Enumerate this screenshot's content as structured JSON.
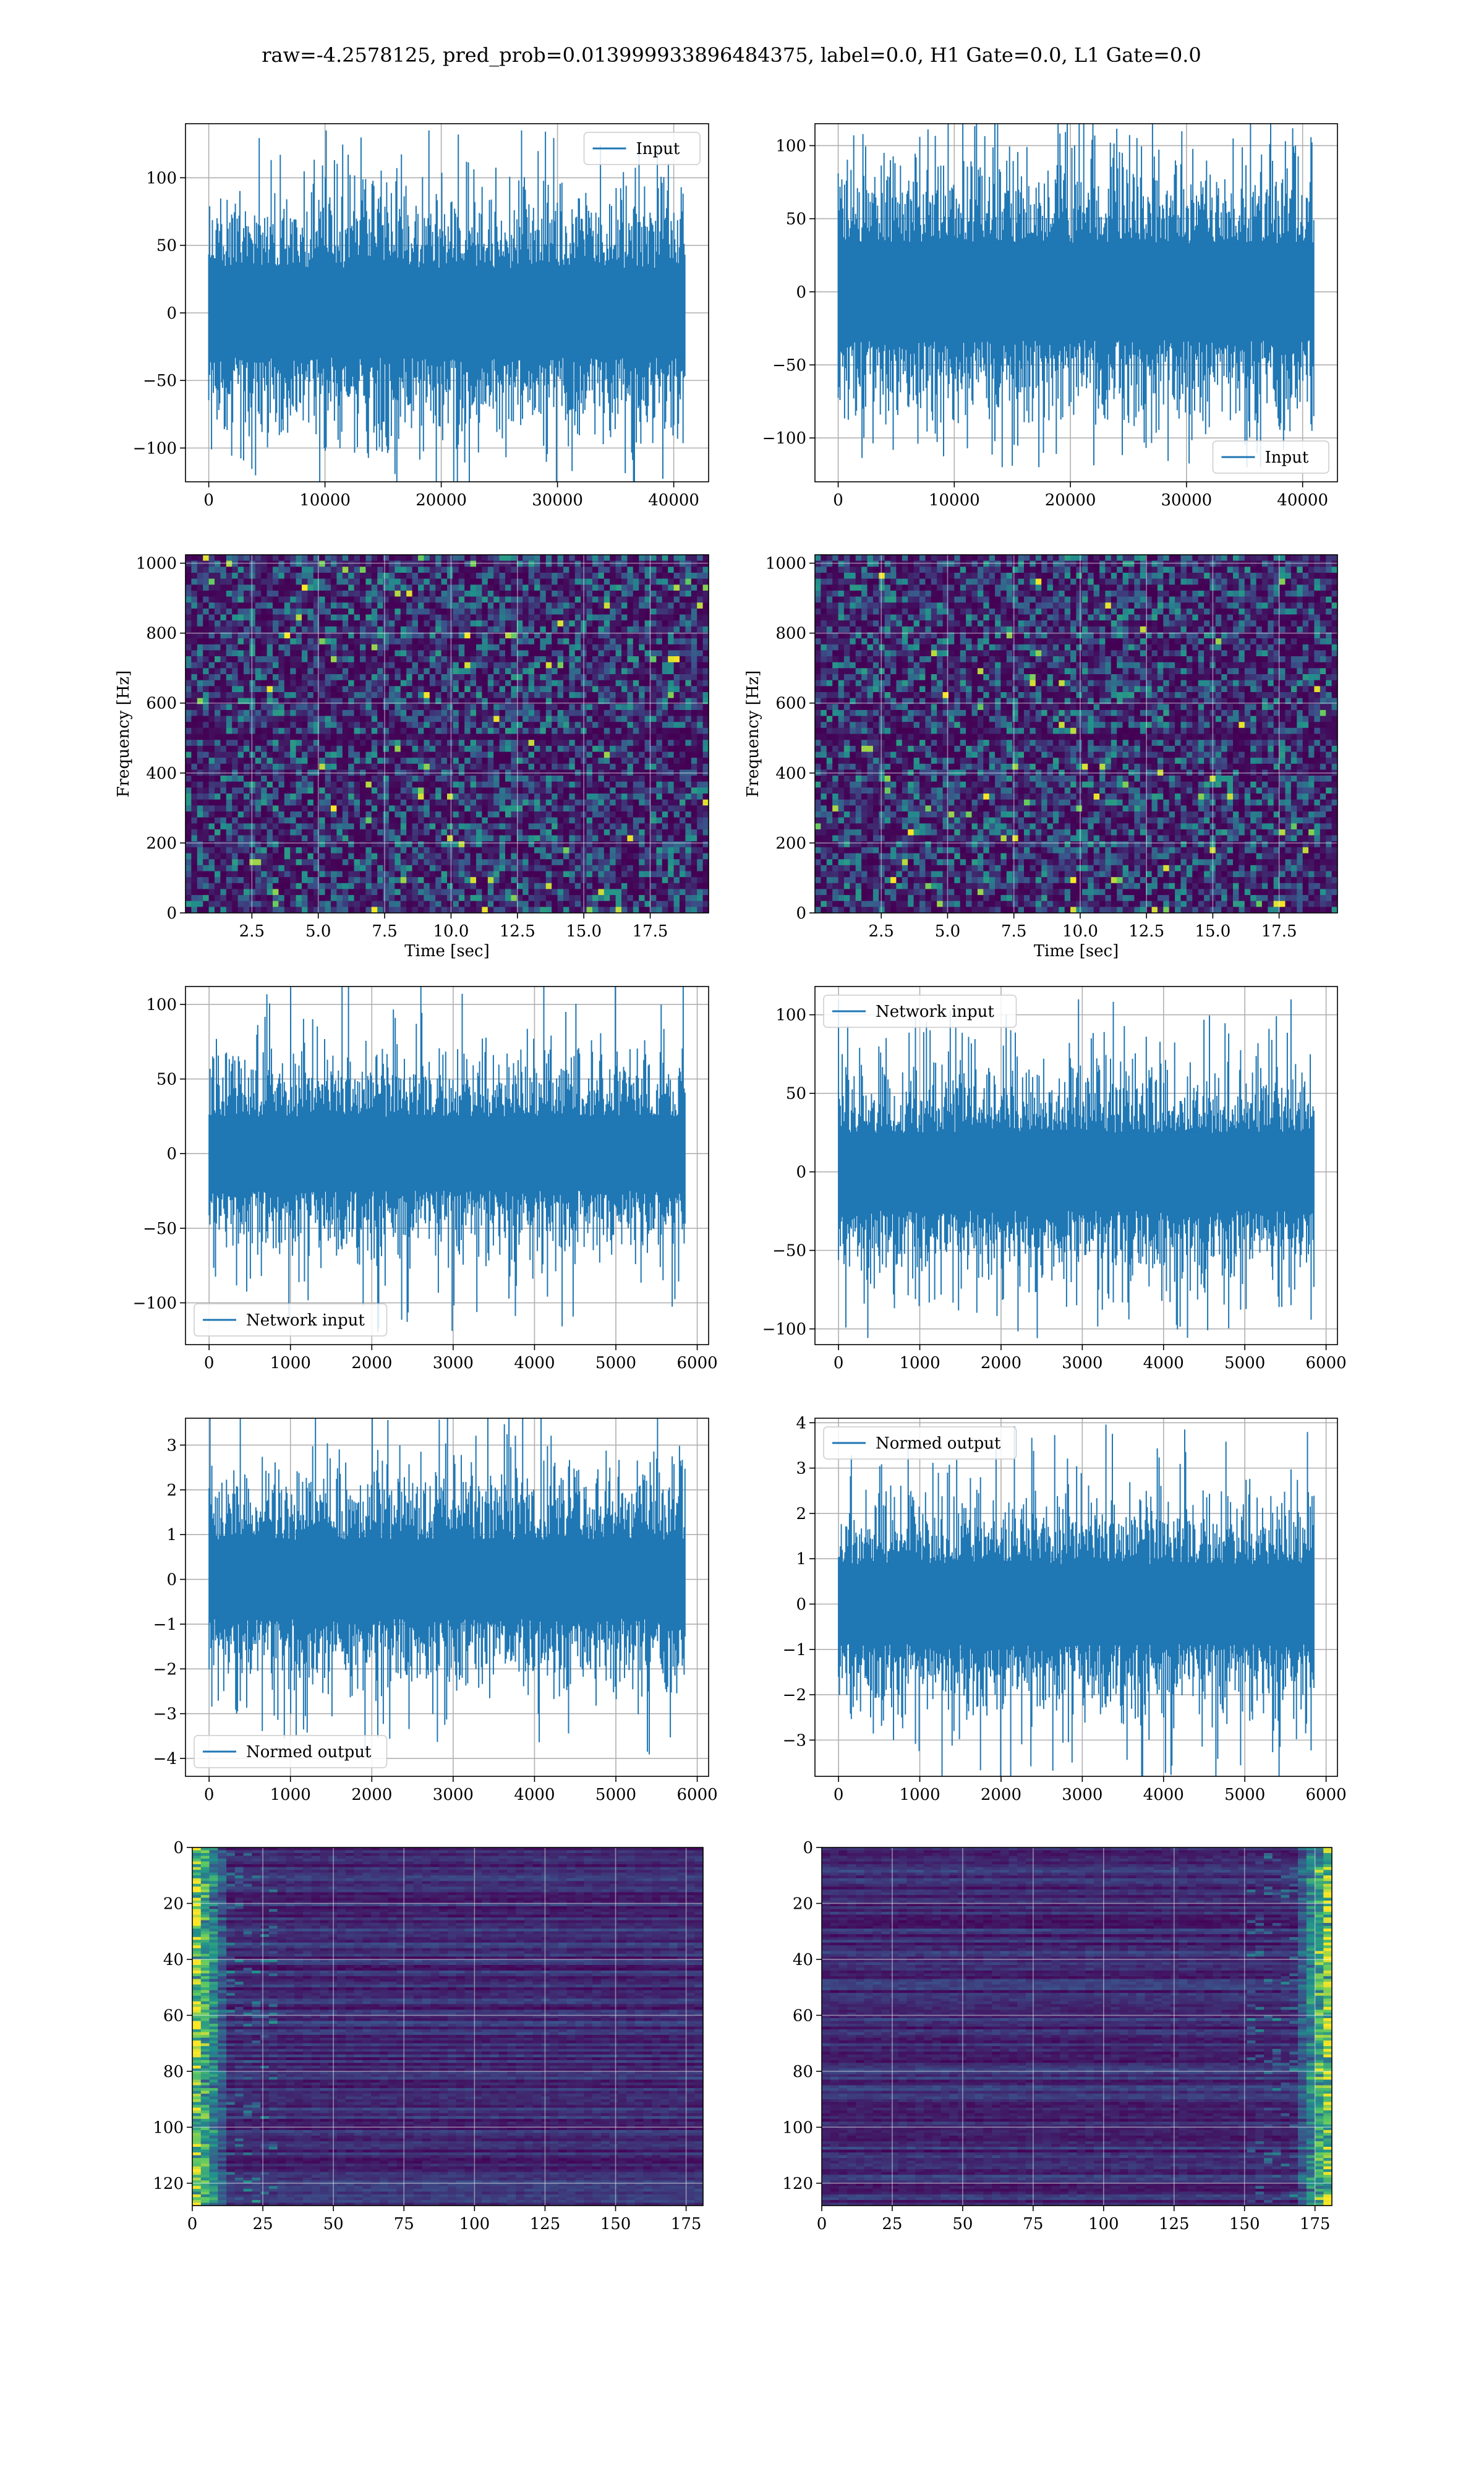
{
  "suptitle": "raw=-4.2578125, pred_prob=0.013999933896484375, label=0.0, H1 Gate=0.0, L1 Gate=0.0",
  "colors": {
    "line": "#1f77b4",
    "grid": "#b0b0b0",
    "viridis_low": "#440154",
    "viridis_mid": "#21918c",
    "viridis_high": "#fde725"
  },
  "chart_data": [
    {
      "id": "input-h1",
      "type": "line",
      "series": [
        {
          "name": "Input",
          "amplitude": 60,
          "spike_max": 135
        }
      ],
      "xlim": [
        -2000,
        43000
      ],
      "ylim": [
        -125,
        140
      ],
      "x_length": 40960,
      "xticks": [
        "0",
        "10000",
        "20000",
        "30000",
        "40000"
      ],
      "xtick_values": [
        0,
        10000,
        20000,
        30000,
        40000
      ],
      "yticks": [
        "100",
        "50",
        "0",
        "−50",
        "−100"
      ],
      "ytick_values": [
        100,
        50,
        0,
        -50,
        -100
      ],
      "legend": "upper right",
      "grid": true
    },
    {
      "id": "input-l1",
      "type": "line",
      "series": [
        {
          "name": "Input",
          "amplitude": 60,
          "spike_max": 120
        }
      ],
      "xlim": [
        -2000,
        43000
      ],
      "ylim": [
        -130,
        115
      ],
      "x_length": 40960,
      "xticks": [
        "0",
        "10000",
        "20000",
        "30000",
        "40000"
      ],
      "xtick_values": [
        0,
        10000,
        20000,
        30000,
        40000
      ],
      "yticks": [
        "100",
        "50",
        "0",
        "−50",
        "−100"
      ],
      "ytick_values": [
        100,
        50,
        0,
        -50,
        -100
      ],
      "legend": "lower right",
      "grid": true
    },
    {
      "id": "spec-h1",
      "type": "heatmap",
      "colormap": "viridis",
      "xlim": [
        0,
        19.7
      ],
      "ylim": [
        0,
        1024
      ],
      "xticks": [
        "2.5",
        "5.0",
        "7.5",
        "10.0",
        "12.5",
        "15.0",
        "17.5"
      ],
      "xtick_values": [
        2.5,
        5,
        7.5,
        10,
        12.5,
        15,
        17.5
      ],
      "yticks": [
        "1000",
        "800",
        "600",
        "400",
        "200",
        "0"
      ],
      "ytick_values": [
        1000,
        800,
        600,
        400,
        200,
        0
      ],
      "xlabel": "Time [sec]",
      "ylabel": "Frequency [Hz]",
      "dark_band_hz": [
        490,
        520
      ],
      "grid": true
    },
    {
      "id": "spec-l1",
      "type": "heatmap",
      "colormap": "viridis",
      "xlim": [
        0,
        19.7
      ],
      "ylim": [
        0,
        1024
      ],
      "xticks": [
        "2.5",
        "5.0",
        "7.5",
        "10.0",
        "12.5",
        "15.0",
        "17.5"
      ],
      "xtick_values": [
        2.5,
        5,
        7.5,
        10,
        12.5,
        15,
        17.5
      ],
      "yticks": [
        "1000",
        "800",
        "600",
        "400",
        "200",
        "0"
      ],
      "ytick_values": [
        1000,
        800,
        600,
        400,
        200,
        0
      ],
      "xlabel": "Time [sec]",
      "ylabel": "Frequency [Hz]",
      "dark_band_hz": [
        495,
        510
      ],
      "grid": true
    },
    {
      "id": "network-h1",
      "type": "line",
      "series": [
        {
          "name": "Network input",
          "amplitude": 45,
          "spike_max": 120
        }
      ],
      "xlim": [
        -290,
        6140
      ],
      "ylim": [
        -128,
        112
      ],
      "x_length": 5850,
      "xticks": [
        "0",
        "1000",
        "2000",
        "3000",
        "4000",
        "5000",
        "6000"
      ],
      "xtick_values": [
        0,
        1000,
        2000,
        3000,
        4000,
        5000,
        6000
      ],
      "yticks": [
        "100",
        "50",
        "0",
        "−50",
        "−100"
      ],
      "ytick_values": [
        100,
        50,
        0,
        -50,
        -100
      ],
      "legend": "lower left",
      "grid": true
    },
    {
      "id": "network-l1",
      "type": "line",
      "series": [
        {
          "name": "Network input",
          "amplitude": 45,
          "spike_max": 110
        }
      ],
      "xlim": [
        -290,
        6140
      ],
      "ylim": [
        -110,
        118
      ],
      "x_length": 5850,
      "xticks": [
        "0",
        "1000",
        "2000",
        "3000",
        "4000",
        "5000",
        "6000"
      ],
      "xtick_values": [
        0,
        1000,
        2000,
        3000,
        4000,
        5000,
        6000
      ],
      "yticks": [
        "100",
        "50",
        "0",
        "−50",
        "−100"
      ],
      "ytick_values": [
        100,
        50,
        0,
        -50,
        -100
      ],
      "legend": "upper left",
      "grid": true
    },
    {
      "id": "normed-h1",
      "type": "line",
      "series": [
        {
          "name": "Normed output",
          "amplitude": 1.6,
          "spike_max": 4.0
        }
      ],
      "xlim": [
        -290,
        6140
      ],
      "ylim": [
        -4.4,
        3.6
      ],
      "x_length": 5850,
      "xticks": [
        "0",
        "1000",
        "2000",
        "3000",
        "4000",
        "5000",
        "6000"
      ],
      "xtick_values": [
        0,
        1000,
        2000,
        3000,
        4000,
        5000,
        6000
      ],
      "yticks": [
        "3",
        "2",
        "1",
        "0",
        "−1",
        "−2",
        "−3",
        "−4"
      ],
      "ytick_values": [
        3,
        2,
        1,
        0,
        -1,
        -2,
        -3,
        -4
      ],
      "legend": "lower left",
      "grid": true
    },
    {
      "id": "normed-l1",
      "type": "line",
      "series": [
        {
          "name": "Normed output",
          "amplitude": 1.6,
          "spike_max": 4.0
        }
      ],
      "xlim": [
        -290,
        6140
      ],
      "ylim": [
        -3.8,
        4.1
      ],
      "x_length": 5850,
      "xticks": [
        "0",
        "1000",
        "2000",
        "3000",
        "4000",
        "5000",
        "6000"
      ],
      "xtick_values": [
        0,
        1000,
        2000,
        3000,
        4000,
        5000,
        6000
      ],
      "yticks": [
        "4",
        "3",
        "2",
        "1",
        "0",
        "−1",
        "−2",
        "−3"
      ],
      "ytick_values": [
        4,
        3,
        2,
        1,
        0,
        -1,
        -2,
        -3
      ],
      "legend": "upper left",
      "grid": true
    },
    {
      "id": "features-h1",
      "type": "heatmap",
      "colormap": "viridis",
      "xlim": [
        0,
        181
      ],
      "ylim": [
        128,
        0
      ],
      "xticks": [
        "0",
        "25",
        "50",
        "75",
        "100",
        "125",
        "150",
        "175"
      ],
      "xtick_values": [
        0,
        25,
        50,
        75,
        100,
        125,
        150,
        175
      ],
      "yticks": [
        "0",
        "20",
        "40",
        "60",
        "80",
        "100",
        "120"
      ],
      "ytick_values": [
        0,
        20,
        40,
        60,
        80,
        100,
        120
      ],
      "bright_side": "left",
      "grid": true
    },
    {
      "id": "features-l1",
      "type": "heatmap",
      "colormap": "viridis",
      "xlim": [
        0,
        181
      ],
      "ylim": [
        128,
        0
      ],
      "xticks": [
        "0",
        "25",
        "50",
        "75",
        "100",
        "125",
        "150",
        "175"
      ],
      "xtick_values": [
        0,
        25,
        50,
        75,
        100,
        125,
        150,
        175
      ],
      "yticks": [
        "0",
        "20",
        "40",
        "60",
        "80",
        "100",
        "120"
      ],
      "ytick_values": [
        0,
        20,
        40,
        60,
        80,
        100,
        120
      ],
      "bright_side": "right",
      "grid": true
    }
  ]
}
